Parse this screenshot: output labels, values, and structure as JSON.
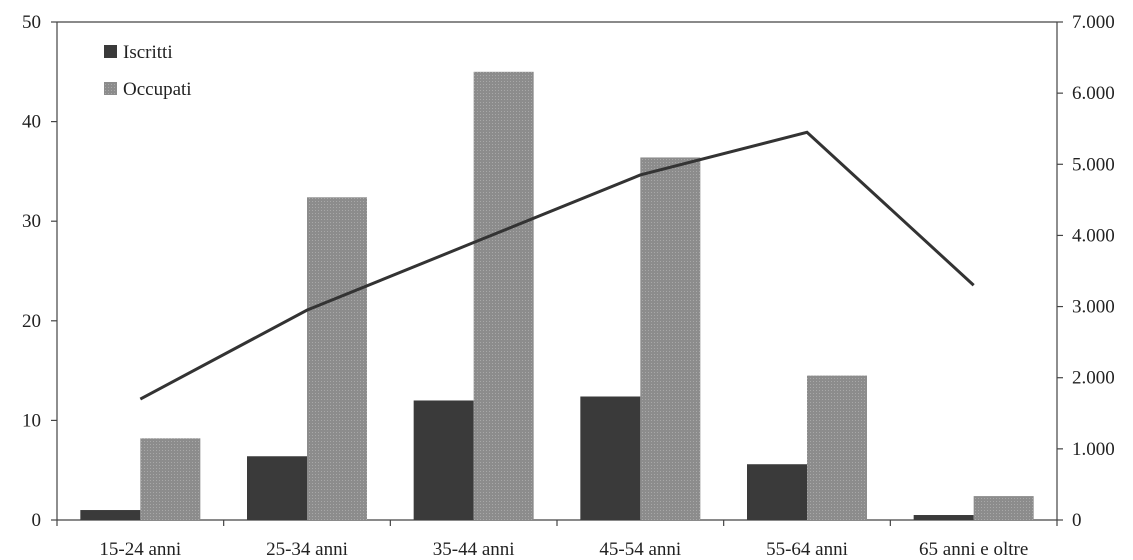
{
  "chart_data": {
    "type": "bar",
    "title": "",
    "xlabel": "",
    "ylabel": "",
    "categories": [
      "15-24 anni",
      "25-34 anni",
      "35-44 anni",
      "45-54 anni",
      "55-64 anni",
      "65 anni e oltre"
    ],
    "ylim": [
      0,
      50
    ],
    "yticks": [
      "0",
      "10",
      "20",
      "30",
      "40",
      "50"
    ],
    "y2lim": [
      0,
      7000
    ],
    "y2ticks": [
      "0",
      "1.000",
      "2.000",
      "3.000",
      "4.000",
      "5.000",
      "6.000",
      "7.000"
    ],
    "grid": false,
    "legend_position": "top-left",
    "series": [
      {
        "name": "Iscritti",
        "type": "bar",
        "axis": "left",
        "color": "#3a3a3a",
        "values": [
          1.0,
          6.4,
          12.0,
          12.4,
          5.6,
          0.5
        ]
      },
      {
        "name": "Occupati",
        "type": "bar",
        "axis": "left",
        "color": "#8c8c8c",
        "values": [
          8.2,
          32.4,
          45.0,
          36.4,
          14.5,
          2.4
        ]
      },
      {
        "type": "line",
        "axis": "right",
        "color": "#333333",
        "values": [
          1700,
          2950,
          3900,
          4850,
          5450,
          3300
        ]
      }
    ]
  }
}
